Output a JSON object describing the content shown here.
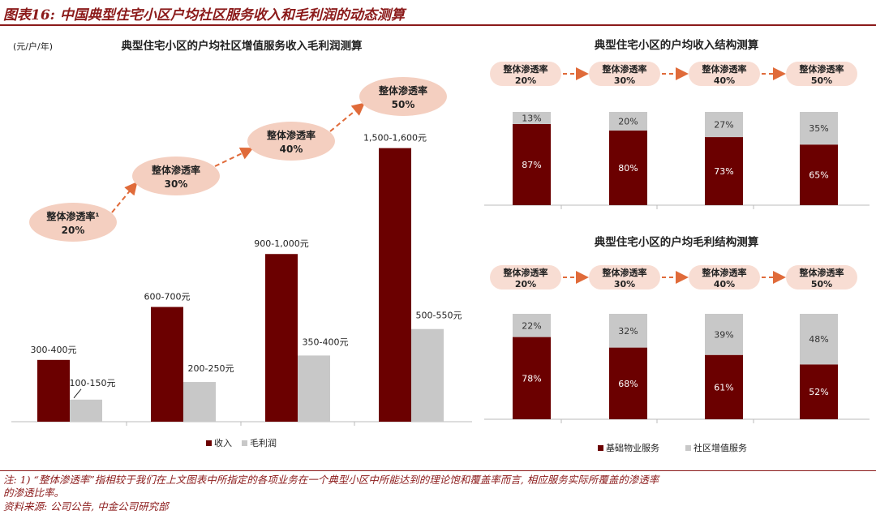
{
  "figure_title": "图表16: 中国典型住宅小区户均社区服务收入和毛利润的动态测算",
  "colors": {
    "accent": "#8b1a1a",
    "revenue": "#6b0000",
    "gross": "#c8c8c8",
    "bubble": "#f4cfc0",
    "arrow": "#e06b3a",
    "pill": "#f8ddd3"
  },
  "left_chart": {
    "unit": "(元/户/年)",
    "title": "典型住宅小区的户均社区增值服务收入毛利润测算"
  },
  "right_top": {
    "title": "典型住宅小区的户均收入结构测算"
  },
  "right_bottom": {
    "title": "典型住宅小区的户均毛利结构测算"
  },
  "legend_left": [
    "收入",
    "毛利润"
  ],
  "legend_right": [
    "基础物业服务",
    "社区增值服务"
  ],
  "chart_data": [
    {
      "type": "bar",
      "title": "典型住宅小区的户均社区增值服务收入毛利润测算",
      "ylabel": "(元/户/年)",
      "categories": [
        "整体渗透率¹\n20%",
        "整体渗透率\n30%",
        "整体渗透率\n40%",
        "整体渗透率\n50%"
      ],
      "series": [
        {
          "name": "收入",
          "values": [
            350,
            650,
            950,
            1550
          ],
          "labels": [
            "300-400元",
            "600-700元",
            "900-1,000元",
            "1,500-1,600元"
          ]
        },
        {
          "name": "毛利润",
          "values": [
            125,
            225,
            375,
            525
          ],
          "labels": [
            "100-150元",
            "200-250元",
            "350-400元",
            "500-550元"
          ]
        }
      ],
      "bubbles": [
        {
          "line1": "整体渗透率¹",
          "line2": "20%"
        },
        {
          "line1": "整体渗透率",
          "line2": "30%"
        },
        {
          "line1": "整体渗透率",
          "line2": "40%"
        },
        {
          "line1": "整体渗透率",
          "line2": "50%"
        }
      ],
      "ylim": [
        0,
        1700
      ]
    },
    {
      "type": "bar",
      "stacked": true,
      "title": "典型住宅小区的户均收入结构测算",
      "categories": [
        "整体渗透率 20%",
        "整体渗透率 30%",
        "整体渗透率 40%",
        "整体渗透率 50%"
      ],
      "pills": [
        {
          "line1": "整体渗透率",
          "line2": "20%"
        },
        {
          "line1": "整体渗透率",
          "line2": "30%"
        },
        {
          "line1": "整体渗透率",
          "line2": "40%"
        },
        {
          "line1": "整体渗透率",
          "line2": "50%"
        }
      ],
      "series": [
        {
          "name": "基础物业服务",
          "values": [
            87,
            80,
            73,
            65
          ],
          "labels": [
            "87%",
            "80%",
            "73%",
            "65%"
          ]
        },
        {
          "name": "社区增值服务",
          "values": [
            13,
            20,
            27,
            35
          ],
          "labels": [
            "13%",
            "20%",
            "27%",
            "35%"
          ]
        }
      ],
      "ylim": [
        0,
        100
      ]
    },
    {
      "type": "bar",
      "stacked": true,
      "title": "典型住宅小区的户均毛利结构测算",
      "categories": [
        "整体渗透率 20%",
        "整体渗透率 30%",
        "整体渗透率 40%",
        "整体渗透率 50%"
      ],
      "pills": [
        {
          "line1": "整体渗透率",
          "line2": "20%"
        },
        {
          "line1": "整体渗透率",
          "line2": "30%"
        },
        {
          "line1": "整体渗透率",
          "line2": "40%"
        },
        {
          "line1": "整体渗透率",
          "line2": "50%"
        }
      ],
      "series": [
        {
          "name": "基础物业服务",
          "values": [
            78,
            68,
            61,
            52
          ],
          "labels": [
            "78%",
            "68%",
            "61%",
            "52%"
          ]
        },
        {
          "name": "社区增值服务",
          "values": [
            22,
            32,
            39,
            48
          ],
          "labels": [
            "22%",
            "32%",
            "39%",
            "48%"
          ]
        }
      ],
      "ylim": [
        0,
        100
      ]
    }
  ],
  "footnote": {
    "line1": "注: 1) “整体渗透率”指相较于我们在上文图表中所指定的各项业务在一个典型小区中所能达到的理论饱和覆盖率而言, 相应服务实际所覆盖的渗透率",
    "line2": "的渗透比率。",
    "source": "资料来源: 公司公告, 中金公司研究部"
  }
}
